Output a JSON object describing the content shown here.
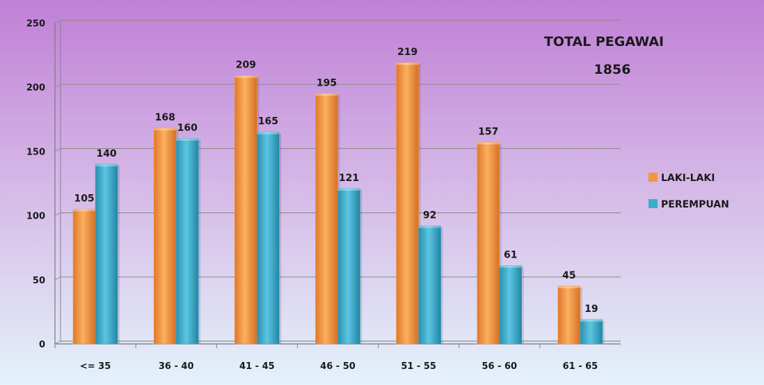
{
  "chart_data": {
    "type": "bar",
    "categories": [
      "<= 35",
      "36 - 40",
      "41 - 45",
      "46 - 50",
      "51 - 55",
      "56 - 60",
      "61 - 65"
    ],
    "series": [
      {
        "name": "LAKI-LAKI",
        "values": [
          105,
          168,
          209,
          195,
          219,
          157,
          45
        ],
        "color": "#f5963c"
      },
      {
        "name": "PEREMPUAN",
        "values": [
          140,
          160,
          165,
          121,
          92,
          61,
          19
        ],
        "color": "#3aaccc"
      }
    ],
    "ylim": [
      0,
      250
    ],
    "yticks": [
      0,
      50,
      100,
      150,
      200,
      250
    ],
    "grid": true,
    "legend_position": "right",
    "annotation": {
      "line1": "TOTAL PEGAWAI",
      "line2": "1856"
    },
    "background": {
      "top": "#c07fd6",
      "bottom": "#e4f2fa"
    }
  }
}
